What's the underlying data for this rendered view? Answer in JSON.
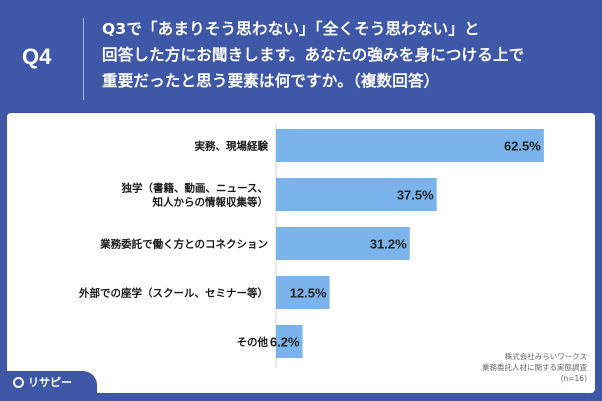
{
  "question": {
    "label": "Q4",
    "lines": [
      "Q3で「あまりそう思わない」「全くそう思わない」と",
      "回答した方にお聞きします。あなたの強みを身につける上で",
      "重要だったと思う要素は何ですか。（複数回答）"
    ]
  },
  "chart_data": {
    "type": "bar",
    "orientation": "horizontal",
    "categories": [
      [
        "実務、現場経験"
      ],
      [
        "独学（書籍、動画、ニュース、",
        "知人からの情報収集等）"
      ],
      [
        "業務委託で働く方とのコネクション"
      ],
      [
        "外部での座学（スクール、セミナー等）"
      ],
      [
        "その他"
      ]
    ],
    "values": [
      62.5,
      37.5,
      31.2,
      12.5,
      6.2
    ],
    "value_labels": [
      "62.5%",
      "37.5%",
      "31.2%",
      "12.5%",
      "6.2%"
    ],
    "xlim": [
      0,
      70
    ],
    "bar_color": "#7bb4ec",
    "grid": false
  },
  "source": {
    "lines": [
      "株式会社みらいワークス",
      "業務委託人材に関する実態調査",
      "(n=16)"
    ]
  },
  "brand": {
    "name": "リサピー"
  },
  "colors": {
    "background": "#3e57a6",
    "bar": "#7bb4ec",
    "text": "#1a1a1a"
  }
}
